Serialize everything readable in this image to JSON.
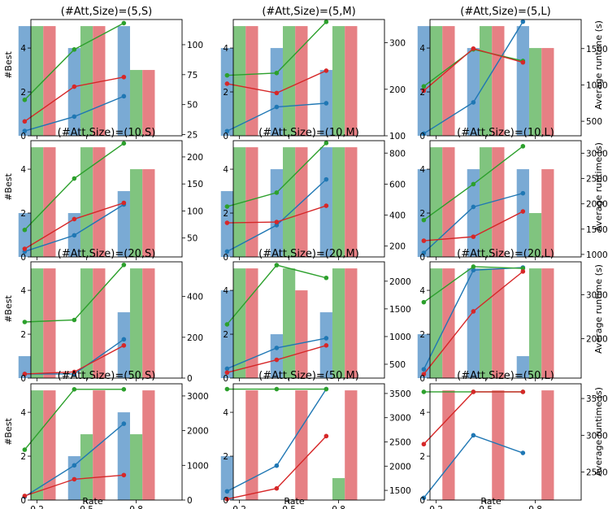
{
  "colors": {
    "blue_bar": "#7aaad4",
    "green_bar": "#80c47f",
    "red_bar": "#e68084",
    "blue_line": "#1f77b4",
    "green_line": "#2ca02c",
    "red_line": "#d62728"
  },
  "labels": {
    "left_ylabel": "#Best",
    "right_ylabel": "Average runtime (s)",
    "xlabel": "Rate"
  },
  "chart_data": [
    {
      "type": "bar+line",
      "title": "(#Att,Size)=(5,S)",
      "categories": [
        "0.2",
        "0.5",
        "0.8"
      ],
      "bars": {
        "blue": [
          5,
          4,
          5
        ],
        "green": [
          5,
          5,
          3
        ],
        "red": [
          5,
          5,
          3
        ]
      },
      "lines": {
        "blue": [
          28,
          40,
          57
        ],
        "green": [
          54,
          96,
          118
        ],
        "red": [
          36,
          65,
          73
        ]
      },
      "ylim_left": [
        0,
        5.3
      ],
      "yticks_left": [
        0,
        2,
        4
      ],
      "ylim_right": [
        24,
        121
      ],
      "yticks_right": [
        25,
        50,
        75,
        100
      ]
    },
    {
      "type": "bar+line",
      "title": "(#Att,Size)=(5,M)",
      "categories": [
        "0.2",
        "0.5",
        "0.8"
      ],
      "bars": {
        "blue": [
          4,
          4,
          3
        ],
        "green": [
          5,
          5,
          5
        ],
        "red": [
          5,
          5,
          5
        ]
      },
      "lines": {
        "blue": [
          110,
          162,
          170
        ],
        "green": [
          230,
          235,
          345
        ],
        "red": [
          212,
          192,
          240
        ]
      },
      "ylim_left": [
        0,
        5.3
      ],
      "yticks_left": [
        0,
        2,
        4
      ],
      "ylim_right": [
        100,
        350
      ],
      "yticks_right": [
        100,
        200,
        300
      ]
    },
    {
      "type": "bar+line",
      "title": "(#Att,Size)=(5,L)",
      "categories": [
        "0.2",
        "0.5",
        "0.8"
      ],
      "bars": {
        "blue": [
          5,
          4,
          5
        ],
        "green": [
          5,
          5,
          4
        ],
        "red": [
          5,
          5,
          4
        ]
      },
      "lines": {
        "blue": [
          330,
          760,
          1870
        ],
        "green": [
          980,
          1490,
          1330
        ],
        "red": [
          920,
          1500,
          1310
        ]
      },
      "ylim_left": [
        0,
        5.3
      ],
      "yticks_left": [
        0,
        2,
        4
      ],
      "ylim_right": [
        300,
        1900
      ],
      "yticks_right": [
        500,
        1000,
        1500
      ]
    },
    {
      "type": "bar+line",
      "title": "(#Att,Size)=(10,S)",
      "categories": [
        "0.2",
        "0.5",
        "0.8"
      ],
      "bars": {
        "blue": [
          2,
          2,
          3
        ],
        "green": [
          5,
          5,
          4
        ],
        "red": [
          5,
          5,
          4
        ]
      },
      "lines": {
        "blue": [
          25,
          55,
          112
        ],
        "green": [
          65,
          160,
          225
        ],
        "red": [
          30,
          85,
          115
        ]
      },
      "ylim_left": [
        0,
        5.3
      ],
      "yticks_left": [
        0,
        2,
        4
      ],
      "ylim_right": [
        15,
        230
      ],
      "yticks_right": [
        50,
        100,
        150,
        200
      ]
    },
    {
      "type": "bar+line",
      "title": "(#Att,Size)=(10,M)",
      "categories": [
        "0.2",
        "0.5",
        "0.8"
      ],
      "bars": {
        "blue": [
          3,
          4,
          5
        ],
        "green": [
          5,
          5,
          5
        ],
        "red": [
          5,
          5,
          5
        ]
      },
      "lines": {
        "blue": [
          165,
          335,
          630
        ],
        "green": [
          455,
          545,
          865
        ],
        "red": [
          350,
          355,
          460
        ]
      },
      "ylim_left": [
        0,
        5.3
      ],
      "yticks_left": [
        0,
        2,
        4
      ],
      "ylim_right": [
        130,
        880
      ],
      "yticks_right": [
        200,
        400,
        600,
        800
      ]
    },
    {
      "type": "bar+line",
      "title": "(#Att,Size)=(10,L)",
      "categories": [
        "0.2",
        "0.5",
        "0.8"
      ],
      "bars": {
        "blue": [
          4,
          4,
          4
        ],
        "green": [
          5,
          5,
          2
        ],
        "red": [
          5,
          5,
          4
        ]
      },
      "lines": {
        "blue": [
          1030,
          1940,
          2210
        ],
        "green": [
          1680,
          2390,
          3140
        ],
        "red": [
          1270,
          1350,
          1850
        ]
      },
      "ylim_left": [
        0,
        5.3
      ],
      "yticks_left": [
        0,
        2,
        4
      ],
      "ylim_right": [
        950,
        3250
      ],
      "yticks_right": [
        1000,
        1500,
        2000,
        2500,
        3000
      ]
    },
    {
      "type": "bar+line",
      "title": "(#Att,Size)=(20,S)",
      "categories": [
        "0.2",
        "0.5",
        "0.8"
      ],
      "bars": {
        "blue": [
          1,
          0,
          3
        ],
        "green": [
          5,
          5,
          5
        ],
        "red": [
          5,
          5,
          5
        ]
      },
      "lines": {
        "blue": [
          20,
          20,
          190
        ],
        "green": [
          275,
          285,
          555
        ],
        "red": [
          20,
          30,
          160
        ]
      },
      "ylim_left": [
        0,
        5.3
      ],
      "yticks_left": [
        0,
        2,
        4
      ],
      "ylim_right": [
        0,
        570
      ],
      "yticks_right": [
        0,
        200,
        400
      ]
    },
    {
      "type": "bar+line",
      "title": "(#Att,Size)=(20,M)",
      "categories": [
        "0.2",
        "0.5",
        "0.8"
      ],
      "bars": {
        "blue": [
          4,
          2,
          3
        ],
        "green": [
          5,
          5,
          5
        ],
        "red": [
          5,
          4,
          5
        ]
      },
      "lines": {
        "blue": [
          420,
          795,
          970
        ],
        "green": [
          1220,
          2290,
          2060
        ],
        "red": [
          350,
          580,
          840
        ]
      },
      "ylim_left": [
        0,
        5.3
      ],
      "yticks_left": [
        0,
        2,
        4
      ],
      "ylim_right": [
        250,
        2350
      ],
      "yticks_right": [
        500,
        1000,
        1500,
        2000
      ]
    },
    {
      "type": "bar+line",
      "title": "(#Att,Size)=(20,L)",
      "categories": [
        "0.2",
        "0.5",
        "0.8"
      ],
      "bars": {
        "blue": [
          2,
          5,
          1
        ],
        "green": [
          5,
          5,
          5
        ],
        "red": [
          5,
          5,
          5
        ]
      },
      "lines": {
        "blue": [
          1300,
          3560,
          3620
        ],
        "green": [
          2830,
          3640,
          3600
        ],
        "red": [
          1190,
          2620,
          3530
        ]
      },
      "ylim_left": [
        0,
        5.3
      ],
      "yticks_left": [
        0,
        2,
        4
      ],
      "ylim_right": [
        1100,
        3750
      ],
      "yticks_right": [
        2000,
        3000
      ]
    },
    {
      "type": "bar+line",
      "title": "(#Att,Size)=(50,S)",
      "categories": [
        "0.2",
        "0.5",
        "0.8"
      ],
      "bars": {
        "blue": [
          0,
          2,
          4
        ],
        "green": [
          5,
          3,
          3
        ],
        "red": [
          5,
          5,
          5
        ]
      },
      "lines": {
        "blue": [
          100,
          1000,
          2200
        ],
        "green": [
          1450,
          3190,
          3190
        ],
        "red": [
          120,
          600,
          720
        ]
      },
      "ylim_left": [
        0,
        5.3
      ],
      "yticks_left": [
        0,
        2,
        4
      ],
      "ylim_right": [
        0,
        3350
      ],
      "yticks_right": [
        0,
        1000,
        2000,
        3000
      ]
    },
    {
      "type": "bar+line",
      "title": "(#Att,Size)=(50,M)",
      "categories": [
        "0.2",
        "0.5",
        "0.8"
      ],
      "bars": {
        "blue": [
          2,
          0,
          0
        ],
        "green": [
          0,
          0,
          1
        ],
        "red": [
          5,
          5,
          5
        ]
      },
      "lines": {
        "blue": [
          1480,
          2010,
          3590
        ],
        "green": [
          3590,
          3590,
          3590
        ],
        "red": [
          1320,
          1540,
          2620
        ]
      },
      "ylim_left": [
        0,
        5.3
      ],
      "yticks_left": [
        0,
        2,
        4
      ],
      "ylim_right": [
        1300,
        3700
      ],
      "yticks_right": [
        1500,
        2000,
        2500,
        3000,
        3500
      ]
    },
    {
      "type": "bar+line",
      "title": "(#Att,Size)=(50,L)",
      "categories": [
        "0.2",
        "0.5",
        "0.8"
      ],
      "bars": {
        "blue": [
          0,
          0,
          0
        ],
        "green": [
          0,
          0,
          0
        ],
        "red": [
          5,
          5,
          5
        ]
      },
      "lines": {
        "blue": [
          2150,
          3000,
          2760
        ],
        "green": [
          3590,
          3590,
          3590
        ],
        "red": [
          2880,
          3590,
          3590
        ]
      },
      "ylim_left": [
        0,
        5.3
      ],
      "yticks_left": [
        0,
        2,
        4
      ],
      "ylim_right": [
        2120,
        3700
      ],
      "yticks_right": [
        2500,
        3000,
        3500
      ]
    }
  ]
}
